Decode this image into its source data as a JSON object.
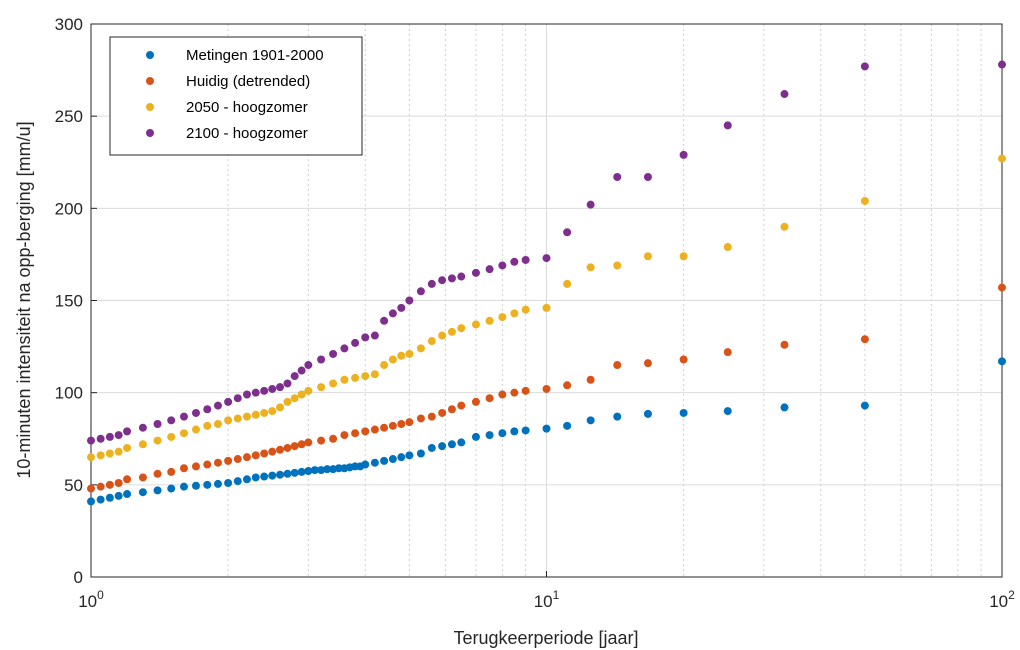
{
  "chart_data": {
    "type": "scatter",
    "title": "",
    "xlabel": "Terugkeerperiode [jaar]",
    "ylabel": "10-minuten intensiteit na opp-berging [mm/u]",
    "x_scale": "log",
    "xlim": [
      1,
      100
    ],
    "ylim": [
      0,
      300
    ],
    "grid": true,
    "legend_position": "top-left",
    "yticks": [
      "0",
      "50",
      "100",
      "150",
      "200",
      "250",
      "300"
    ],
    "xticks": [
      {
        "base": "10",
        "exp": "0"
      },
      {
        "base": "10",
        "exp": "1"
      },
      {
        "base": "10",
        "exp": "2"
      }
    ],
    "series": [
      {
        "name": "Metingen 1901-2000",
        "color": "#0072BD",
        "points": [
          [
            1.0,
            41
          ],
          [
            1.05,
            42
          ],
          [
            1.1,
            43
          ],
          [
            1.15,
            44
          ],
          [
            1.2,
            45
          ],
          [
            1.3,
            46
          ],
          [
            1.4,
            47
          ],
          [
            1.5,
            48
          ],
          [
            1.6,
            49
          ],
          [
            1.7,
            49.5
          ],
          [
            1.8,
            50
          ],
          [
            1.9,
            50.5
          ],
          [
            2.0,
            51
          ],
          [
            2.1,
            52
          ],
          [
            2.2,
            53
          ],
          [
            2.3,
            54
          ],
          [
            2.4,
            54.5
          ],
          [
            2.5,
            55
          ],
          [
            2.6,
            55.5
          ],
          [
            2.7,
            56
          ],
          [
            2.8,
            56.5
          ],
          [
            2.9,
            57
          ],
          [
            3.0,
            57.5
          ],
          [
            3.1,
            58
          ],
          [
            3.2,
            58
          ],
          [
            3.3,
            58.5
          ],
          [
            3.4,
            58.5
          ],
          [
            3.5,
            59
          ],
          [
            3.6,
            59
          ],
          [
            3.7,
            59.5
          ],
          [
            3.8,
            60
          ],
          [
            3.9,
            60
          ],
          [
            4.0,
            61
          ],
          [
            4.2,
            62
          ],
          [
            4.4,
            63
          ],
          [
            4.6,
            64
          ],
          [
            4.8,
            65
          ],
          [
            5.0,
            66
          ],
          [
            5.3,
            67
          ],
          [
            5.6,
            70
          ],
          [
            5.9,
            71
          ],
          [
            6.2,
            72
          ],
          [
            6.5,
            73
          ],
          [
            7.0,
            76
          ],
          [
            7.5,
            77
          ],
          [
            8.0,
            78
          ],
          [
            8.5,
            79
          ],
          [
            9.0,
            79.5
          ],
          [
            10.0,
            80.5
          ],
          [
            11.1,
            82
          ],
          [
            12.5,
            85
          ],
          [
            14.3,
            87
          ],
          [
            16.7,
            88.5
          ],
          [
            20,
            89
          ],
          [
            25,
            90
          ],
          [
            33.3,
            92
          ],
          [
            50,
            93
          ],
          [
            100,
            117
          ]
        ]
      },
      {
        "name": "Huidig (detrended)",
        "color": "#D95319",
        "points": [
          [
            1.0,
            48
          ],
          [
            1.05,
            49
          ],
          [
            1.1,
            50
          ],
          [
            1.15,
            51
          ],
          [
            1.2,
            53
          ],
          [
            1.3,
            54
          ],
          [
            1.4,
            56
          ],
          [
            1.5,
            57
          ],
          [
            1.6,
            59
          ],
          [
            1.7,
            60
          ],
          [
            1.8,
            61
          ],
          [
            1.9,
            62
          ],
          [
            2.0,
            63
          ],
          [
            2.1,
            64
          ],
          [
            2.2,
            65
          ],
          [
            2.3,
            66
          ],
          [
            2.4,
            67
          ],
          [
            2.5,
            68
          ],
          [
            2.6,
            69
          ],
          [
            2.7,
            70
          ],
          [
            2.8,
            71
          ],
          [
            2.9,
            72
          ],
          [
            3.0,
            73
          ],
          [
            3.2,
            74
          ],
          [
            3.4,
            75
          ],
          [
            3.6,
            77
          ],
          [
            3.8,
            78
          ],
          [
            4.0,
            79
          ],
          [
            4.2,
            80
          ],
          [
            4.4,
            81
          ],
          [
            4.6,
            82
          ],
          [
            4.8,
            83
          ],
          [
            5.0,
            84
          ],
          [
            5.3,
            86
          ],
          [
            5.6,
            87
          ],
          [
            5.9,
            89
          ],
          [
            6.2,
            91
          ],
          [
            6.5,
            93
          ],
          [
            7.0,
            95
          ],
          [
            7.5,
            97
          ],
          [
            8.0,
            99
          ],
          [
            8.5,
            100
          ],
          [
            9.0,
            101
          ],
          [
            10.0,
            102
          ],
          [
            11.1,
            104
          ],
          [
            12.5,
            107
          ],
          [
            14.3,
            115
          ],
          [
            16.7,
            116
          ],
          [
            20,
            118
          ],
          [
            25,
            122
          ],
          [
            33.3,
            126
          ],
          [
            50,
            129
          ],
          [
            100,
            157
          ]
        ]
      },
      {
        "name": "2050 - hoogzomer",
        "color": "#EDB120",
        "points": [
          [
            1.0,
            65
          ],
          [
            1.05,
            66
          ],
          [
            1.1,
            67
          ],
          [
            1.15,
            68
          ],
          [
            1.2,
            70
          ],
          [
            1.3,
            72
          ],
          [
            1.4,
            74
          ],
          [
            1.5,
            76
          ],
          [
            1.6,
            78
          ],
          [
            1.7,
            80
          ],
          [
            1.8,
            82
          ],
          [
            1.9,
            83
          ],
          [
            2.0,
            85
          ],
          [
            2.1,
            86
          ],
          [
            2.2,
            87
          ],
          [
            2.3,
            88
          ],
          [
            2.4,
            89
          ],
          [
            2.5,
            90
          ],
          [
            2.6,
            92
          ],
          [
            2.7,
            95
          ],
          [
            2.8,
            97
          ],
          [
            2.9,
            99
          ],
          [
            3.0,
            101
          ],
          [
            3.2,
            103
          ],
          [
            3.4,
            105
          ],
          [
            3.6,
            107
          ],
          [
            3.8,
            108
          ],
          [
            4.0,
            109
          ],
          [
            4.2,
            110
          ],
          [
            4.4,
            115
          ],
          [
            4.6,
            118
          ],
          [
            4.8,
            120
          ],
          [
            5.0,
            121
          ],
          [
            5.3,
            124
          ],
          [
            5.6,
            128
          ],
          [
            5.9,
            131
          ],
          [
            6.2,
            133
          ],
          [
            6.5,
            135
          ],
          [
            7.0,
            137
          ],
          [
            7.5,
            139
          ],
          [
            8.0,
            141
          ],
          [
            8.5,
            143
          ],
          [
            9.0,
            145
          ],
          [
            10.0,
            146
          ],
          [
            11.1,
            159
          ],
          [
            12.5,
            168
          ],
          [
            14.3,
            169
          ],
          [
            16.7,
            174
          ],
          [
            20,
            174
          ],
          [
            25,
            179
          ],
          [
            33.3,
            190
          ],
          [
            50,
            204
          ],
          [
            100,
            227
          ]
        ]
      },
      {
        "name": "2100 - hoogzomer",
        "color": "#7E2F8E",
        "points": [
          [
            1.0,
            74
          ],
          [
            1.05,
            75
          ],
          [
            1.1,
            76
          ],
          [
            1.15,
            77
          ],
          [
            1.2,
            79
          ],
          [
            1.3,
            81
          ],
          [
            1.4,
            83
          ],
          [
            1.5,
            85
          ],
          [
            1.6,
            87
          ],
          [
            1.7,
            89
          ],
          [
            1.8,
            91
          ],
          [
            1.9,
            93
          ],
          [
            2.0,
            95
          ],
          [
            2.1,
            97
          ],
          [
            2.2,
            99
          ],
          [
            2.3,
            100
          ],
          [
            2.4,
            101
          ],
          [
            2.5,
            102
          ],
          [
            2.6,
            103
          ],
          [
            2.7,
            105
          ],
          [
            2.8,
            109
          ],
          [
            2.9,
            112
          ],
          [
            3.0,
            115
          ],
          [
            3.2,
            118
          ],
          [
            3.4,
            121
          ],
          [
            3.6,
            124
          ],
          [
            3.8,
            127
          ],
          [
            4.0,
            130
          ],
          [
            4.2,
            131
          ],
          [
            4.4,
            139
          ],
          [
            4.6,
            143
          ],
          [
            4.8,
            146
          ],
          [
            5.0,
            150
          ],
          [
            5.3,
            155
          ],
          [
            5.6,
            159
          ],
          [
            5.9,
            161
          ],
          [
            6.2,
            162
          ],
          [
            6.5,
            163
          ],
          [
            7.0,
            165
          ],
          [
            7.5,
            167
          ],
          [
            8.0,
            169
          ],
          [
            8.5,
            171
          ],
          [
            9.0,
            172
          ],
          [
            10.0,
            173
          ],
          [
            11.1,
            187
          ],
          [
            12.5,
            202
          ],
          [
            14.3,
            217
          ],
          [
            16.7,
            217
          ],
          [
            20,
            229
          ],
          [
            25,
            245
          ],
          [
            33.3,
            262
          ],
          [
            50,
            277
          ],
          [
            100,
            278
          ]
        ]
      }
    ]
  }
}
